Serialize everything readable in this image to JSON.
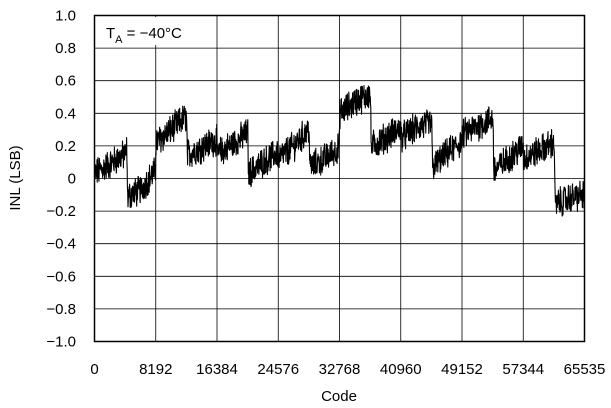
{
  "chart_data": {
    "type": "line",
    "annotation": {
      "prefix": "T",
      "subscript": "A",
      "suffix": " = −40°C"
    },
    "xlabel": "Code",
    "ylabel": "INL (LSB)",
    "xlim": [
      0,
      65535
    ],
    "ylim": [
      -1.0,
      1.0
    ],
    "grid": true,
    "x_ticks": [
      0,
      8192,
      16384,
      24576,
      32768,
      40960,
      49152,
      57344,
      65535
    ],
    "x_tick_labels": [
      "0",
      "8192",
      "16384",
      "24576",
      "32768",
      "40960",
      "49152",
      "57344",
      "65535"
    ],
    "y_ticks": [
      1.0,
      0.8,
      0.6,
      0.4,
      0.2,
      0,
      -0.2,
      -0.4,
      -0.6,
      -0.8,
      -1.0
    ],
    "y_tick_labels": [
      "1.0",
      "0.8",
      "0.6",
      "0.4",
      "0.2",
      "0",
      "−0.2",
      "−0.4",
      "−0.6",
      "−0.8",
      "−1.0"
    ],
    "series": [
      {
        "color": "#000000",
        "noise_band": 0.08,
        "points": [
          [
            0,
            0.03
          ],
          [
            2048,
            0.09
          ],
          [
            4096,
            0.15
          ],
          [
            4350,
            0.18
          ],
          [
            4400,
            -0.11
          ],
          [
            6144,
            -0.07
          ],
          [
            8191,
            0.05
          ],
          [
            8192,
            0.22
          ],
          [
            10240,
            0.3
          ],
          [
            12288,
            0.38
          ],
          [
            12300,
            0.38
          ],
          [
            12400,
            0.15
          ],
          [
            14336,
            0.19
          ],
          [
            16383,
            0.24
          ],
          [
            16384,
            0.15
          ],
          [
            18432,
            0.21
          ],
          [
            20480,
            0.28
          ],
          [
            20500,
            0.28
          ],
          [
            20600,
            0.03
          ],
          [
            22528,
            0.1
          ],
          [
            24575,
            0.16
          ],
          [
            24576,
            0.12
          ],
          [
            26624,
            0.2
          ],
          [
            28672,
            0.3
          ],
          [
            28700,
            0.3
          ],
          [
            28800,
            0.07
          ],
          [
            30720,
            0.12
          ],
          [
            32767,
            0.19
          ],
          [
            32768,
            0.4
          ],
          [
            34816,
            0.47
          ],
          [
            36864,
            0.52
          ],
          [
            36900,
            0.52
          ],
          [
            37000,
            0.2
          ],
          [
            38912,
            0.25
          ],
          [
            40959,
            0.31
          ],
          [
            40960,
            0.25
          ],
          [
            43008,
            0.31
          ],
          [
            45056,
            0.34
          ],
          [
            45100,
            0.34
          ],
          [
            45200,
            0.07
          ],
          [
            47104,
            0.15
          ],
          [
            49151,
            0.23
          ],
          [
            49152,
            0.27
          ],
          [
            51200,
            0.32
          ],
          [
            53248,
            0.37
          ],
          [
            53300,
            0.37
          ],
          [
            53400,
            0.05
          ],
          [
            55296,
            0.12
          ],
          [
            57343,
            0.2
          ],
          [
            57344,
            0.12
          ],
          [
            59392,
            0.17
          ],
          [
            61440,
            0.22
          ],
          [
            61500,
            0.22
          ],
          [
            61600,
            -0.16
          ],
          [
            63488,
            -0.12
          ],
          [
            65535,
            -0.1
          ]
        ]
      }
    ]
  }
}
